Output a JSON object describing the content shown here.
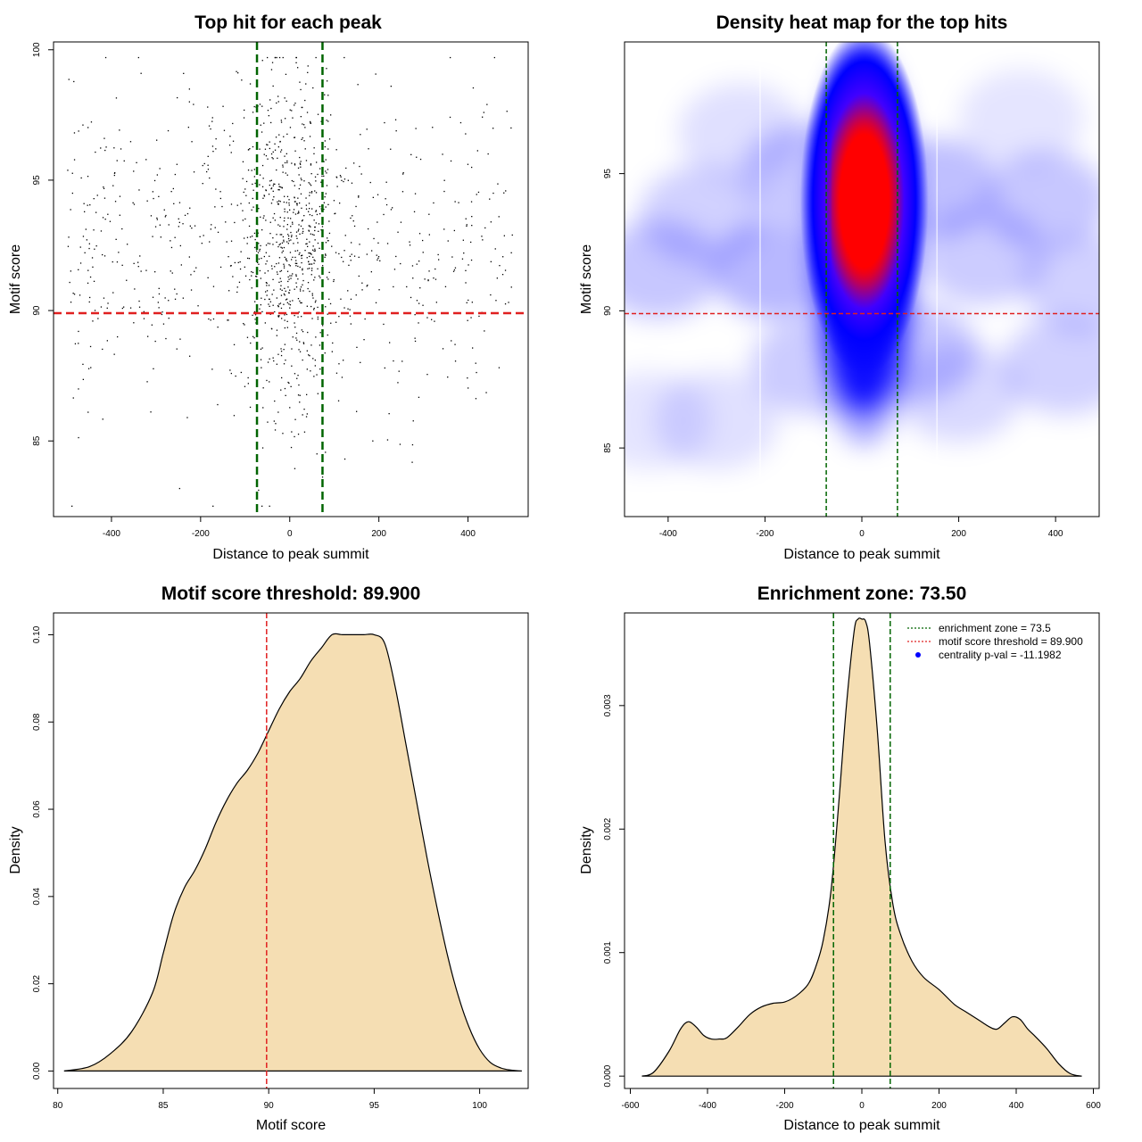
{
  "colors": {
    "enrichment_line": "#006400",
    "threshold_line": "#e02020",
    "density_fill": "#f5deb3",
    "points": "#000000",
    "heat_low": "#ffffff",
    "heat_mid": "#0000ff",
    "heat_high": "#ff0000",
    "pval_marker": "#0000ff"
  },
  "chart_data": [
    {
      "id": "scatter",
      "type": "scatter",
      "title": "Top hit for each peak",
      "xlabel": "Distance to peak summit",
      "ylabel": "Motif score",
      "xlim": [
        -530,
        535
      ],
      "ylim": [
        82.1,
        100.3
      ],
      "xticks": [
        -400,
        -200,
        0,
        200,
        400
      ],
      "yticks": [
        85,
        90,
        95,
        100
      ],
      "enrichment_zone": [
        -73.5,
        73.5
      ],
      "threshold": 89.9,
      "n_points": 1300,
      "x_distribution": {
        "center": 0,
        "central_sd": 55,
        "central_fraction": 0.5,
        "range": [
          -500,
          500
        ]
      },
      "y_distribution": {
        "mean": 92.5,
        "sd": 3.2,
        "range": [
          82.5,
          99.7
        ]
      }
    },
    {
      "id": "heatmap",
      "type": "heatmap",
      "title": "Density heat map for the top hits",
      "xlabel": "Distance to peak summit",
      "ylabel": "Motif score",
      "xlim": [
        -490,
        490
      ],
      "ylim": [
        82.5,
        99.8
      ],
      "xticks": [
        -400,
        -200,
        0,
        200,
        400
      ],
      "yticks": [
        85,
        90,
        95
      ],
      "enrichment_zone": [
        -73.5,
        73.5
      ],
      "threshold": 89.9,
      "white_gridlines_x": [
        -210,
        155
      ],
      "peak": {
        "x": 5,
        "y": 94,
        "sd_x": 42,
        "sd_y": 3.6
      }
    },
    {
      "id": "score-density",
      "type": "area",
      "title": "Motif score threshold: 89.900",
      "xlabel": "Motif score",
      "ylabel": "Density",
      "xlim": [
        79.8,
        102.3
      ],
      "ylim": [
        -0.004,
        0.105
      ],
      "xticks": [
        80,
        85,
        90,
        95,
        100
      ],
      "yticks": [
        0.0,
        0.02,
        0.04,
        0.06,
        0.08,
        0.1
      ],
      "ytick_labels": [
        "0.00",
        "0.02",
        "0.04",
        "0.06",
        "0.08",
        "0.10"
      ],
      "threshold": 89.9,
      "x": [
        80.3,
        81.5,
        82.5,
        83.5,
        84.5,
        85.0,
        85.5,
        86.0,
        86.5,
        87.0,
        87.5,
        88.0,
        88.5,
        89.0,
        89.5,
        90.0,
        90.5,
        91.0,
        91.5,
        92.0,
        92.5,
        93.0,
        93.5,
        94.0,
        94.5,
        95.0,
        95.5,
        96.0,
        96.5,
        97.0,
        97.5,
        98.0,
        98.5,
        99.0,
        99.5,
        100.0,
        100.5,
        101.0,
        101.5,
        102.0
      ],
      "y": [
        0.0,
        0.001,
        0.004,
        0.009,
        0.018,
        0.027,
        0.036,
        0.042,
        0.046,
        0.051,
        0.057,
        0.062,
        0.066,
        0.069,
        0.073,
        0.078,
        0.083,
        0.087,
        0.09,
        0.094,
        0.097,
        0.1,
        0.1,
        0.1,
        0.1,
        0.1,
        0.098,
        0.088,
        0.075,
        0.062,
        0.049,
        0.037,
        0.026,
        0.017,
        0.01,
        0.005,
        0.002,
        0.0007,
        0.0002,
        0.0
      ]
    },
    {
      "id": "distance-density",
      "type": "area",
      "title": "Enrichment zone: 73.50",
      "xlabel": "Distance to peak summit",
      "ylabel": "Density",
      "xlim": [
        -615,
        615
      ],
      "ylim": [
        -0.0001,
        0.00375
      ],
      "xticks": [
        -600,
        -400,
        -200,
        0,
        200,
        400,
        600
      ],
      "yticks": [
        0.0,
        0.001,
        0.002,
        0.003
      ],
      "ytick_labels": [
        "0.000",
        "0.001",
        "0.002",
        "0.003"
      ],
      "enrichment_zone": [
        -73.5,
        73.5
      ],
      "x": [
        -570,
        -540,
        -500,
        -470,
        -450,
        -430,
        -410,
        -390,
        -370,
        -350,
        -320,
        -290,
        -260,
        -230,
        -200,
        -170,
        -140,
        -120,
        -100,
        -80,
        -60,
        -40,
        -20,
        -10,
        0,
        10,
        20,
        40,
        60,
        80,
        100,
        130,
        160,
        200,
        240,
        270,
        300,
        330,
        350,
        370,
        390,
        410,
        430,
        450,
        480,
        510,
        540,
        570
      ],
      "y": [
        0.0,
        3e-05,
        0.0002,
        0.00038,
        0.00044,
        0.0004,
        0.00033,
        0.0003,
        0.0003,
        0.00031,
        0.0004,
        0.0005,
        0.00056,
        0.00059,
        0.0006,
        0.00065,
        0.00074,
        0.00088,
        0.0011,
        0.0015,
        0.0022,
        0.003,
        0.0036,
        0.0037,
        0.0037,
        0.00368,
        0.0035,
        0.0028,
        0.0019,
        0.0014,
        0.00115,
        0.00093,
        0.0008,
        0.0007,
        0.00058,
        0.00052,
        0.00046,
        0.0004,
        0.00038,
        0.00043,
        0.00048,
        0.00046,
        0.00038,
        0.00032,
        0.00022,
        0.0001,
        2e-05,
        0.0
      ],
      "legend": [
        {
          "style": "dotted",
          "color": "#006400",
          "text": "enrichment zone = 73.5"
        },
        {
          "style": "dotted",
          "color": "#e02020",
          "text": "motif score threshold = 89.900"
        },
        {
          "style": "point",
          "color": "#0000ff",
          "text": "centrality p-val = -11.1982"
        }
      ]
    }
  ]
}
